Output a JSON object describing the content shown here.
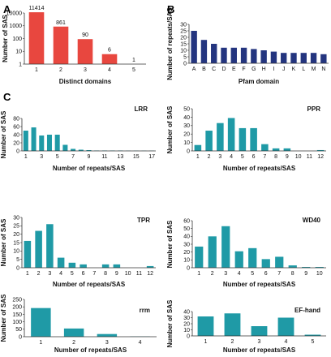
{
  "panel_labels": [
    "A",
    "B",
    "C"
  ],
  "chart_data": [
    {
      "id": "A",
      "type": "bar",
      "title": "",
      "categories": [
        "1",
        "2",
        "3",
        "4",
        "5"
      ],
      "values": [
        11414,
        861,
        90,
        6,
        1
      ],
      "data_labels": [
        "11414",
        "861",
        "90",
        "6",
        "1"
      ],
      "xlabel": "Distinct domains",
      "ylabel": "Number of SAS",
      "yscale": "log",
      "ylim": [
        1,
        10000
      ],
      "yticks": [
        1,
        10,
        100,
        1000,
        10000
      ],
      "ytick_labels": [
        "1",
        "10",
        "100",
        "1000",
        "10000"
      ],
      "color": "#e8473f",
      "grid": false
    },
    {
      "id": "B",
      "type": "bar",
      "title": "",
      "categories": [
        "A",
        "B",
        "C",
        "D",
        "E",
        "F",
        "G",
        "H",
        "I",
        "J",
        "K",
        "L",
        "M",
        "N"
      ],
      "values": [
        25,
        18,
        15,
        12,
        12,
        12,
        11,
        10,
        9,
        8,
        8,
        8,
        8,
        7
      ],
      "xlabel": "Pfam domain",
      "ylabel": "Number of repeats/SAS",
      "ylim": [
        0,
        30
      ],
      "yticks": [
        0,
        5,
        10,
        15,
        20,
        25,
        30
      ],
      "color": "#24357f",
      "grid": false
    },
    {
      "id": "LRR",
      "type": "bar",
      "title": "LRR",
      "categories": [
        "1",
        "2",
        "3",
        "4",
        "5",
        "6",
        "7",
        "8",
        "9",
        "10",
        "11",
        "12",
        "13",
        "14",
        "15",
        "16",
        "17"
      ],
      "tick_labels": [
        "1",
        "",
        "3",
        "",
        "5",
        "",
        "7",
        "",
        "9",
        "",
        "11",
        "",
        "13",
        "",
        "15",
        "",
        "17"
      ],
      "values": [
        50,
        58,
        38,
        40,
        40,
        15,
        5,
        3,
        2,
        1,
        1,
        1,
        1,
        0.5,
        0.5,
        0.5,
        0.5
      ],
      "xlabel": "Number of repeats/SAS",
      "ylabel": "Number of SAS",
      "ylim": [
        0,
        80
      ],
      "yticks": [
        0,
        20,
        40,
        60,
        80
      ],
      "color": "#1f9aa6",
      "grid": false
    },
    {
      "id": "PPR",
      "type": "bar",
      "title": "PPR",
      "categories": [
        "1",
        "2",
        "3",
        "4",
        "5",
        "6",
        "7",
        "8",
        "9",
        "10",
        "11",
        "12"
      ],
      "values": [
        7,
        24,
        33,
        39,
        27,
        27,
        8,
        3,
        3,
        0,
        0,
        1
      ],
      "xlabel": "Number of repeats/SAS",
      "ylabel": "Number of SAS",
      "ylim": [
        0,
        50
      ],
      "yticks": [
        0,
        10,
        20,
        30,
        40,
        50
      ],
      "color": "#1f9aa6",
      "grid": false
    },
    {
      "id": "TPR",
      "type": "bar",
      "title": "TPR",
      "categories": [
        "1",
        "2",
        "3",
        "4",
        "5",
        "6",
        "7",
        "8",
        "9",
        "10",
        "11",
        "12"
      ],
      "values": [
        16,
        22,
        26,
        6,
        3,
        2,
        0,
        2,
        2,
        0,
        0,
        1
      ],
      "xlabel": "Number of repeats/SAS",
      "ylabel": "Number of SAS",
      "ylim": [
        0,
        30
      ],
      "yticks": [
        0,
        5,
        10,
        15,
        20,
        25,
        30
      ],
      "color": "#1f9aa6",
      "grid": false
    },
    {
      "id": "WD40",
      "type": "bar",
      "title": "WD40",
      "categories": [
        "1",
        "2",
        "3",
        "4",
        "5",
        "6",
        "7",
        "8",
        "9",
        "10"
      ],
      "values": [
        27,
        40,
        53,
        21,
        25,
        11,
        14,
        3,
        1,
        1
      ],
      "xlabel": "Number of repeats/SAS",
      "ylabel": "Number of SAS",
      "ylim": [
        0,
        60
      ],
      "yticks": [
        0,
        10,
        20,
        30,
        40,
        50,
        60
      ],
      "color": "#1f9aa6",
      "grid": false
    },
    {
      "id": "rrm",
      "type": "bar",
      "title": "rrm",
      "categories": [
        "1",
        "2",
        "3",
        "4"
      ],
      "values": [
        192,
        55,
        18,
        2
      ],
      "xlabel": "Number of repeats/SAS",
      "ylabel": "Number of SAS",
      "ylim": [
        0,
        250
      ],
      "yticks": [
        0,
        50,
        100,
        150,
        200,
        250
      ],
      "color": "#1f9aa6",
      "grid": false
    },
    {
      "id": "EF-hand",
      "type": "bar",
      "title": "EF-hand",
      "categories": [
        "1",
        "2",
        "3",
        "4",
        "5"
      ],
      "values": [
        32,
        37,
        16,
        30,
        2
      ],
      "xlabel": "Number of repeats/SAS",
      "ylabel": "Number of SAS",
      "ylim": [
        0,
        40
      ],
      "yticks": [
        0,
        10,
        20,
        30,
        40
      ],
      "color": "#1f9aa6",
      "grid": false
    }
  ]
}
